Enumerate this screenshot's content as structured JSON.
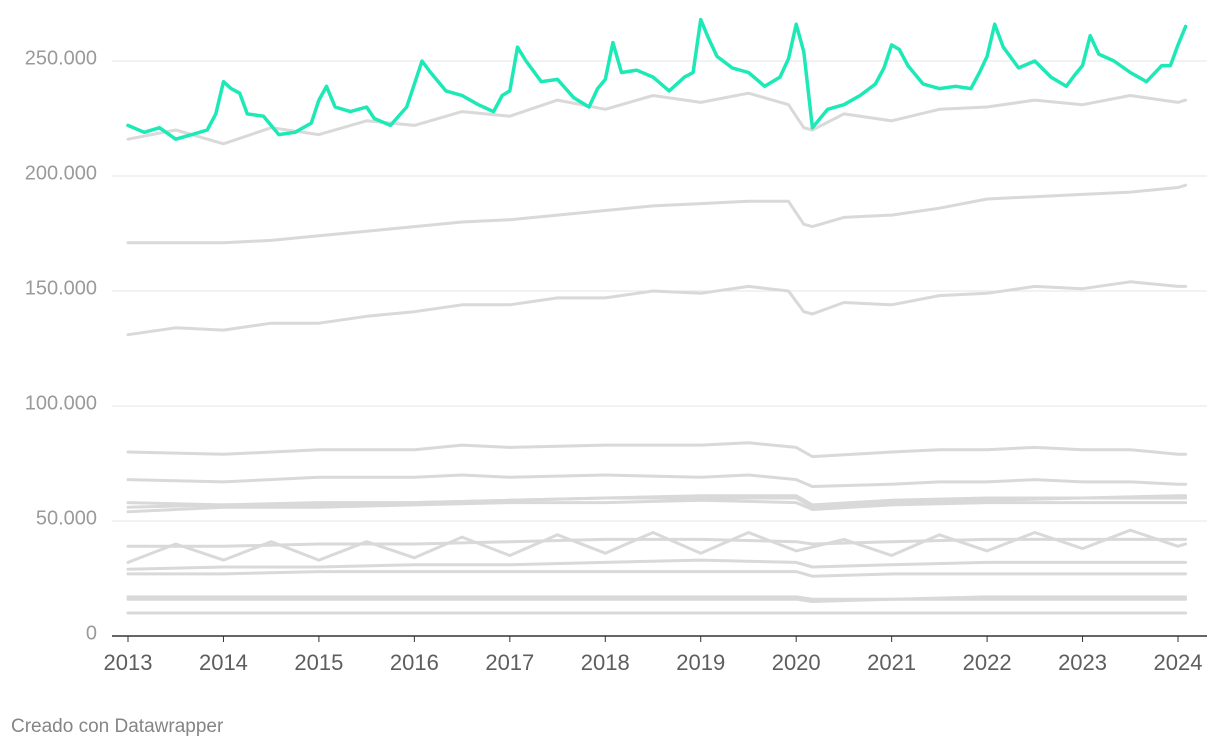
{
  "chart_data": {
    "type": "line",
    "title": "",
    "xlabel": "",
    "ylabel": "",
    "xlim": [
      2013,
      2024.33
    ],
    "ylim": [
      0,
      270000
    ],
    "y_ticks": [
      {
        "value": 0,
        "label": "0"
      },
      {
        "value": 50000,
        "label": "50.000"
      },
      {
        "value": 100000,
        "label": "100.000"
      },
      {
        "value": 150000,
        "label": "150.000"
      },
      {
        "value": 200000,
        "label": "200.000"
      },
      {
        "value": 250000,
        "label": "250.000"
      }
    ],
    "x_ticks": [
      {
        "value": 2013,
        "label": "2013"
      },
      {
        "value": 2014,
        "label": "2014"
      },
      {
        "value": 2015,
        "label": "2015"
      },
      {
        "value": 2016,
        "label": "2016"
      },
      {
        "value": 2017,
        "label": "2017"
      },
      {
        "value": 2018,
        "label": "2018"
      },
      {
        "value": 2019,
        "label": "2019"
      },
      {
        "value": 2020,
        "label": "2020"
      },
      {
        "value": 2021,
        "label": "2021"
      },
      {
        "value": 2022,
        "label": "2022"
      },
      {
        "value": 2023,
        "label": "2023"
      },
      {
        "value": 2024,
        "label": "2024"
      }
    ],
    "grid": true,
    "legend": "none",
    "colors": {
      "highlight": "#1de9b6",
      "context": "#d9d9d9",
      "grid": "#e6e6e6",
      "baseline": "#333333"
    },
    "series": [
      {
        "highlight": true,
        "x": [
          2013.0,
          2013.17,
          2013.33,
          2013.5,
          2013.67,
          2013.83,
          2013.92,
          2014.0,
          2014.08,
          2014.17,
          2014.25,
          2014.42,
          2014.58,
          2014.75,
          2014.92,
          2015.0,
          2015.08,
          2015.17,
          2015.33,
          2015.5,
          2015.58,
          2015.75,
          2015.92,
          2016.0,
          2016.08,
          2016.17,
          2016.33,
          2016.5,
          2016.67,
          2016.83,
          2016.92,
          2017.0,
          2017.08,
          2017.17,
          2017.33,
          2017.5,
          2017.67,
          2017.83,
          2017.92,
          2018.0,
          2018.08,
          2018.17,
          2018.33,
          2018.5,
          2018.67,
          2018.83,
          2018.92,
          2019.0,
          2019.08,
          2019.17,
          2019.33,
          2019.5,
          2019.67,
          2019.83,
          2019.92,
          2020.0,
          2020.08,
          2020.17,
          2020.33,
          2020.5,
          2020.67,
          2020.83,
          2020.92,
          2021.0,
          2021.08,
          2021.17,
          2021.33,
          2021.5,
          2021.67,
          2021.83,
          2021.92,
          2022.0,
          2022.08,
          2022.17,
          2022.33,
          2022.5,
          2022.67,
          2022.83,
          2022.92,
          2023.0,
          2023.08,
          2023.17,
          2023.33,
          2023.5,
          2023.67,
          2023.83,
          2023.92,
          2024.0,
          2024.08
        ],
        "values": [
          222000,
          219000,
          221000,
          216000,
          218000,
          220000,
          227000,
          241000,
          238000,
          236000,
          227000,
          226000,
          218000,
          219000,
          223000,
          233000,
          239000,
          230000,
          228000,
          230000,
          225000,
          222000,
          230000,
          240000,
          250000,
          245000,
          237000,
          235000,
          231000,
          228000,
          235000,
          237000,
          256000,
          250000,
          241000,
          242000,
          234000,
          230000,
          238000,
          242000,
          258000,
          245000,
          246000,
          243000,
          237000,
          243000,
          245000,
          268000,
          260000,
          252000,
          247000,
          245000,
          239000,
          243000,
          251000,
          266000,
          254000,
          221000,
          229000,
          231000,
          235000,
          240000,
          247000,
          257000,
          255000,
          248000,
          240000,
          238000,
          239000,
          238000,
          245000,
          252000,
          266000,
          256000,
          247000,
          250000,
          243000,
          239000,
          244000,
          248000,
          261000,
          253000,
          250000,
          245000,
          241000,
          248000,
          248000,
          257000,
          265000
        ]
      },
      {
        "highlight": false,
        "x": [
          2013.0,
          2013.5,
          2014.0,
          2014.5,
          2015.0,
          2015.5,
          2016.0,
          2016.5,
          2017.0,
          2017.5,
          2018.0,
          2018.5,
          2019.0,
          2019.5,
          2019.92,
          2020.08,
          2020.17,
          2020.5,
          2021.0,
          2021.5,
          2022.0,
          2022.5,
          2023.0,
          2023.5,
          2024.0,
          2024.08
        ],
        "values": [
          216000,
          220000,
          214000,
          221000,
          218000,
          224000,
          222000,
          228000,
          226000,
          233000,
          229000,
          235000,
          232000,
          236000,
          231000,
          221000,
          220000,
          227000,
          224000,
          229000,
          230000,
          233000,
          231000,
          235000,
          232000,
          233000
        ]
      },
      {
        "highlight": false,
        "x": [
          2013.0,
          2013.5,
          2014.0,
          2014.5,
          2015.0,
          2015.5,
          2016.0,
          2016.5,
          2017.0,
          2017.5,
          2018.0,
          2018.5,
          2019.0,
          2019.5,
          2019.92,
          2020.08,
          2020.17,
          2020.5,
          2021.0,
          2021.5,
          2022.0,
          2022.5,
          2023.0,
          2023.5,
          2024.0,
          2024.08
        ],
        "values": [
          171000,
          171000,
          171000,
          172000,
          174000,
          176000,
          178000,
          180000,
          181000,
          183000,
          185000,
          187000,
          188000,
          189000,
          189000,
          179000,
          178000,
          182000,
          183000,
          186000,
          190000,
          191000,
          192000,
          193000,
          195000,
          196000
        ]
      },
      {
        "highlight": false,
        "x": [
          2013.0,
          2013.5,
          2014.0,
          2014.5,
          2015.0,
          2015.5,
          2016.0,
          2016.5,
          2017.0,
          2017.5,
          2018.0,
          2018.5,
          2019.0,
          2019.5,
          2019.92,
          2020.08,
          2020.17,
          2020.5,
          2021.0,
          2021.5,
          2022.0,
          2022.5,
          2023.0,
          2023.5,
          2024.0,
          2024.08
        ],
        "values": [
          131000,
          134000,
          133000,
          136000,
          136000,
          139000,
          141000,
          144000,
          144000,
          147000,
          147000,
          150000,
          149000,
          152000,
          150000,
          141000,
          140000,
          145000,
          144000,
          148000,
          149000,
          152000,
          151000,
          154000,
          152000,
          152000
        ]
      },
      {
        "highlight": false,
        "x": [
          2013.0,
          2014.0,
          2015.0,
          2016.0,
          2016.5,
          2017.0,
          2018.0,
          2019.0,
          2019.5,
          2020.0,
          2020.17,
          2021.0,
          2021.5,
          2022.0,
          2022.5,
          2023.0,
          2023.5,
          2024.0,
          2024.08
        ],
        "values": [
          80000,
          79000,
          81000,
          81000,
          83000,
          82000,
          83000,
          83000,
          84000,
          82000,
          78000,
          80000,
          81000,
          81000,
          82000,
          81000,
          81000,
          79000,
          79000
        ]
      },
      {
        "highlight": false,
        "x": [
          2013.0,
          2014.0,
          2015.0,
          2016.0,
          2016.5,
          2017.0,
          2018.0,
          2019.0,
          2019.5,
          2020.0,
          2020.17,
          2021.0,
          2021.5,
          2022.0,
          2022.5,
          2023.0,
          2023.5,
          2024.0,
          2024.08
        ],
        "values": [
          68000,
          67000,
          69000,
          69000,
          70000,
          69000,
          70000,
          69000,
          70000,
          68000,
          65000,
          66000,
          67000,
          67000,
          68000,
          67000,
          67000,
          66000,
          66000
        ]
      },
      {
        "highlight": false,
        "x": [
          2013.0,
          2014.0,
          2015.0,
          2016.0,
          2017.0,
          2018.0,
          2019.0,
          2020.0,
          2020.17,
          2021.0,
          2022.0,
          2023.0,
          2024.0,
          2024.08
        ],
        "values": [
          58000,
          57000,
          58000,
          58000,
          59000,
          60000,
          61000,
          61000,
          57000,
          59000,
          60000,
          60000,
          60000,
          60000
        ]
      },
      {
        "highlight": false,
        "x": [
          2013.0,
          2014.0,
          2015.0,
          2016.0,
          2017.0,
          2018.0,
          2019.0,
          2020.0,
          2020.17,
          2021.0,
          2022.0,
          2023.0,
          2024.0,
          2024.08
        ],
        "values": [
          56000,
          57000,
          57000,
          58000,
          59000,
          60000,
          60000,
          60000,
          56000,
          58000,
          59000,
          60000,
          61000,
          61000
        ]
      },
      {
        "highlight": false,
        "x": [
          2013.0,
          2014.0,
          2015.0,
          2016.0,
          2017.0,
          2018.0,
          2019.0,
          2020.0,
          2020.17,
          2021.0,
          2022.0,
          2023.0,
          2024.0,
          2024.08
        ],
        "values": [
          54000,
          56000,
          56000,
          57000,
          58000,
          58000,
          59000,
          58000,
          55000,
          57000,
          58000,
          58000,
          58000,
          58000
        ]
      },
      {
        "highlight": false,
        "x": [
          2013.0,
          2013.5,
          2014.0,
          2014.5,
          2015.0,
          2015.5,
          2016.0,
          2016.5,
          2017.0,
          2017.5,
          2018.0,
          2018.5,
          2019.0,
          2019.5,
          2020.0,
          2020.5,
          2021.0,
          2021.5,
          2022.0,
          2022.5,
          2023.0,
          2023.5,
          2024.0,
          2024.08
        ],
        "values": [
          32000,
          40000,
          33000,
          41000,
          33000,
          41000,
          34000,
          43000,
          35000,
          44000,
          36000,
          45000,
          36000,
          45000,
          37000,
          42000,
          35000,
          44000,
          37000,
          45000,
          38000,
          46000,
          39000,
          40000
        ]
      },
      {
        "highlight": false,
        "x": [
          2013.0,
          2014.0,
          2015.0,
          2016.0,
          2017.0,
          2018.0,
          2019.0,
          2020.0,
          2020.17,
          2021.0,
          2022.0,
          2023.0,
          2024.0,
          2024.08
        ],
        "values": [
          39000,
          39000,
          40000,
          40000,
          41000,
          42000,
          42000,
          41000,
          40000,
          41000,
          42000,
          42000,
          42000,
          42000
        ]
      },
      {
        "highlight": false,
        "x": [
          2013.0,
          2014.0,
          2015.0,
          2016.0,
          2017.0,
          2018.0,
          2019.0,
          2020.0,
          2020.17,
          2021.0,
          2022.0,
          2023.0,
          2024.0,
          2024.08
        ],
        "values": [
          29000,
          30000,
          30000,
          31000,
          31000,
          32000,
          33000,
          32000,
          30000,
          31000,
          32000,
          32000,
          32000,
          32000
        ]
      },
      {
        "highlight": false,
        "x": [
          2013.0,
          2014.0,
          2015.0,
          2016.0,
          2017.0,
          2018.0,
          2019.0,
          2020.0,
          2020.17,
          2021.0,
          2022.0,
          2023.0,
          2024.0,
          2024.08
        ],
        "values": [
          27000,
          27000,
          28000,
          28000,
          28000,
          28000,
          28000,
          28000,
          26000,
          27000,
          27000,
          27000,
          27000,
          27000
        ]
      },
      {
        "highlight": false,
        "x": [
          2013.0,
          2014.0,
          2015.0,
          2016.0,
          2017.0,
          2018.0,
          2019.0,
          2020.0,
          2020.17,
          2021.0,
          2022.0,
          2023.0,
          2024.0,
          2024.08
        ],
        "values": [
          17000,
          17000,
          17000,
          17000,
          17000,
          17000,
          17000,
          17000,
          16000,
          16000,
          17000,
          17000,
          17000,
          17000
        ]
      },
      {
        "highlight": false,
        "x": [
          2013.0,
          2014.0,
          2015.0,
          2016.0,
          2017.0,
          2018.0,
          2019.0,
          2020.0,
          2020.17,
          2021.0,
          2022.0,
          2023.0,
          2024.0,
          2024.08
        ],
        "values": [
          16000,
          16000,
          16000,
          16000,
          16000,
          16000,
          16000,
          16000,
          15000,
          16000,
          16000,
          16000,
          16000,
          16000
        ]
      },
      {
        "highlight": false,
        "x": [
          2013.0,
          2014.0,
          2015.0,
          2016.0,
          2017.0,
          2018.0,
          2019.0,
          2020.0,
          2021.0,
          2022.0,
          2023.0,
          2024.0,
          2024.08
        ],
        "values": [
          10000,
          10000,
          10000,
          10000,
          10000,
          10000,
          10000,
          10000,
          10000,
          10000,
          10000,
          10000,
          10000
        ]
      }
    ]
  },
  "footer": {
    "credit": "Creado con Datawrapper"
  }
}
